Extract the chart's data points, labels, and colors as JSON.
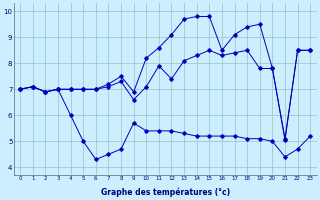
{
  "xlabel": "Graphe des températures (°c)",
  "background_color": "#cceeff",
  "grid_color": "#99cccc",
  "line_color": "#0000bb",
  "hours": [
    0,
    1,
    2,
    3,
    4,
    5,
    6,
    7,
    8,
    9,
    10,
    11,
    12,
    13,
    14,
    15,
    16,
    17,
    18,
    19,
    20,
    21,
    22,
    23
  ],
  "line1": [
    7.0,
    7.1,
    6.9,
    7.0,
    6.0,
    5.0,
    4.3,
    4.5,
    4.7,
    5.7,
    5.4,
    5.4,
    5.4,
    5.3,
    5.2,
    5.2,
    5.2,
    5.2,
    5.1,
    5.1,
    5.0,
    4.4,
    4.7,
    5.2
  ],
  "line2": [
    7.0,
    7.1,
    6.9,
    7.0,
    7.0,
    7.0,
    7.0,
    7.1,
    7.3,
    6.6,
    7.1,
    7.9,
    7.4,
    8.1,
    8.3,
    8.5,
    8.3,
    8.4,
    8.5,
    7.8,
    7.8,
    5.1,
    8.5,
    8.5
  ],
  "line3": [
    7.0,
    7.1,
    6.9,
    7.0,
    7.0,
    7.0,
    7.0,
    7.2,
    7.5,
    6.9,
    8.2,
    8.6,
    9.1,
    9.7,
    9.8,
    9.8,
    8.5,
    9.1,
    9.4,
    9.5,
    7.8,
    5.05,
    8.5,
    8.5
  ],
  "ylim": [
    3.7,
    10.3
  ],
  "yticks": [
    4,
    5,
    6,
    7,
    8,
    9,
    10
  ],
  "xlim": [
    -0.5,
    23.5
  ]
}
